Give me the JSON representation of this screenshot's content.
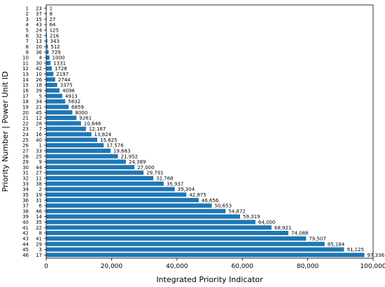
{
  "chart_data": {
    "type": "bar",
    "orientation": "horizontal",
    "title": "",
    "xlabel": "Integrated Priority Indicator",
    "ylabel": "Priority Number | Power Unit ID",
    "xlim": [
      0,
      100000
    ],
    "xticks": [
      {
        "value": 0,
        "label": "0"
      },
      {
        "value": 20000,
        "label": "20,000"
      },
      {
        "value": 40000,
        "label": "40,000"
      },
      {
        "value": 60000,
        "label": "60,000"
      },
      {
        "value": 80000,
        "label": "80,000"
      },
      {
        "value": 100000,
        "label": "100,000"
      }
    ],
    "grid": false,
    "legend": "none",
    "bar_color": "#1f77b4",
    "priority_numbers": [
      "1",
      "2",
      "3",
      "4",
      "5",
      "6",
      "7",
      "8",
      "9",
      "10",
      "11",
      "12",
      "13",
      "14",
      "15",
      "16",
      "17",
      "18",
      "19",
      "20",
      "21",
      "22",
      "23",
      "24",
      "25",
      "26",
      "27",
      "28",
      "29",
      "30",
      "31",
      "32",
      "33",
      "34",
      "35",
      "36",
      "37",
      "38",
      "39",
      "40",
      "41",
      "42",
      "43",
      "44",
      "45",
      "46"
    ],
    "unit_ids": [
      "23",
      "37",
      "15",
      "43",
      "24",
      "32",
      "13",
      "20",
      "36",
      "4",
      "30",
      "42",
      "10",
      "26",
      "18",
      "39",
      "5",
      "34",
      "21",
      "45",
      "12",
      "28",
      "7",
      "16",
      "40",
      "1",
      "33",
      "25",
      "9",
      "44",
      "27",
      "11",
      "38",
      "2",
      "19",
      "31",
      "6",
      "46",
      "14",
      "35",
      "22",
      "8",
      "41",
      "29",
      "3",
      "17"
    ],
    "values": [
      1,
      8,
      27,
      64,
      125,
      216,
      343,
      512,
      729,
      1000,
      1331,
      1728,
      2197,
      2744,
      3375,
      4096,
      4913,
      5832,
      6859,
      8000,
      9261,
      10648,
      12167,
      13824,
      15625,
      17576,
      19683,
      21952,
      24389,
      27000,
      29791,
      32768,
      35937,
      39304,
      42875,
      46656,
      50653,
      54872,
      59319,
      64000,
      68921,
      74088,
      79507,
      85184,
      91125,
      97336
    ],
    "value_labels": [
      "1",
      "8",
      "27",
      "64",
      "125",
      "216",
      "343",
      "512",
      "729",
      "1000",
      "1331",
      "1728",
      "2197",
      "2744",
      "3375",
      "4096",
      "4913",
      "5832",
      "6859",
      "8000",
      "9261",
      "10,648",
      "12,167",
      "13,824",
      "15,625",
      "17,576",
      "19,683",
      "21,952",
      "24,389",
      "27,000",
      "29,791",
      "32,768",
      "35,937",
      "39,304",
      "42,875",
      "46,656",
      "50,653",
      "54,872",
      "59,319",
      "64,000",
      "68,921",
      "74,088",
      "79,507",
      "85,184",
      "91,125",
      "97,336"
    ]
  }
}
